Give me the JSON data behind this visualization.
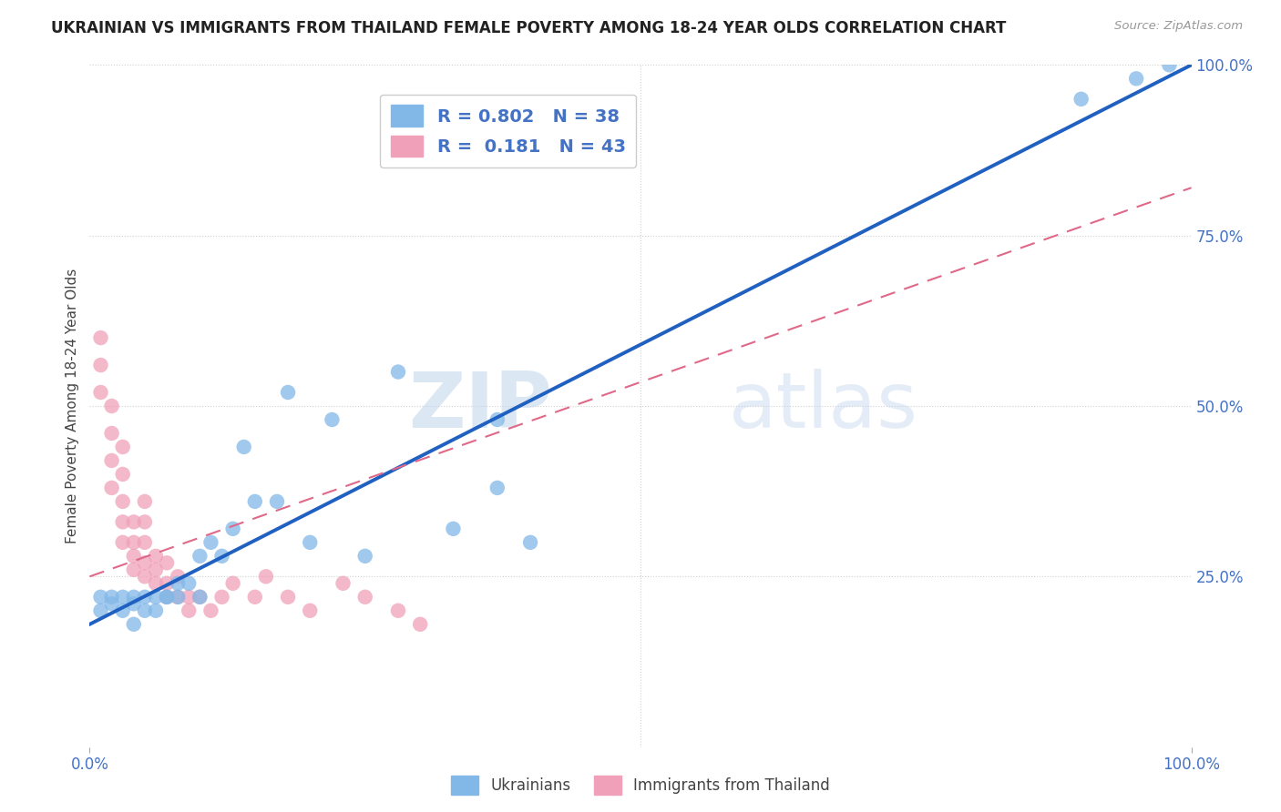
{
  "title": "UKRAINIAN VS IMMIGRANTS FROM THAILAND FEMALE POVERTY AMONG 18-24 YEAR OLDS CORRELATION CHART",
  "source": "Source: ZipAtlas.com",
  "ylabel": "Female Poverty Among 18-24 Year Olds",
  "xlim": [
    0,
    1.0
  ],
  "ylim": [
    0,
    1.0
  ],
  "grid_ticks": [
    0.25,
    0.5,
    0.75
  ],
  "xtick_positions": [
    0.0,
    1.0
  ],
  "xtick_labels": [
    "0.0%",
    "100.0%"
  ],
  "ytick_positions": [
    0.25,
    0.5,
    0.75,
    1.0
  ],
  "ytick_labels_right": [
    "25.0%",
    "50.0%",
    "75.0%",
    "100.0%"
  ],
  "blue_color": "#82b8e8",
  "pink_color": "#f0a0b8",
  "blue_R": 0.802,
  "blue_N": 38,
  "pink_R": 0.181,
  "pink_N": 43,
  "legend_label_blue": "Ukrainians",
  "legend_label_pink": "Immigrants from Thailand",
  "watermark_zip": "ZIP",
  "watermark_atlas": "atlas",
  "background_color": "#ffffff",
  "grid_color": "#d0d0d0",
  "blue_line_x0": 0.0,
  "blue_line_y0": 0.18,
  "blue_line_x1": 1.0,
  "blue_line_y1": 1.0,
  "pink_line_x0": 0.0,
  "pink_line_y0": 0.25,
  "pink_line_x1": 1.0,
  "pink_line_y1": 0.82,
  "blue_line_color": "#2060c0",
  "pink_line_color": "#e06888",
  "title_color": "#222222",
  "axis_label_color": "#444444",
  "tick_color": "#4472c4",
  "blue_scatter_x": [
    0.01,
    0.01,
    0.02,
    0.02,
    0.03,
    0.03,
    0.04,
    0.04,
    0.04,
    0.05,
    0.05,
    0.06,
    0.06,
    0.07,
    0.07,
    0.08,
    0.08,
    0.09,
    0.1,
    0.1,
    0.11,
    0.12,
    0.13,
    0.14,
    0.15,
    0.17,
    0.18,
    0.2,
    0.22,
    0.25,
    0.28,
    0.33,
    0.37,
    0.37,
    0.4,
    0.9,
    0.95,
    0.98
  ],
  "blue_scatter_y": [
    0.2,
    0.22,
    0.21,
    0.22,
    0.2,
    0.22,
    0.18,
    0.21,
    0.22,
    0.2,
    0.22,
    0.2,
    0.22,
    0.22,
    0.22,
    0.22,
    0.24,
    0.24,
    0.22,
    0.28,
    0.3,
    0.28,
    0.32,
    0.44,
    0.36,
    0.36,
    0.52,
    0.3,
    0.48,
    0.28,
    0.55,
    0.32,
    0.38,
    0.48,
    0.3,
    0.95,
    0.98,
    1.0
  ],
  "pink_scatter_x": [
    0.01,
    0.01,
    0.01,
    0.02,
    0.02,
    0.02,
    0.02,
    0.03,
    0.03,
    0.03,
    0.03,
    0.03,
    0.04,
    0.04,
    0.04,
    0.04,
    0.05,
    0.05,
    0.05,
    0.05,
    0.05,
    0.06,
    0.06,
    0.06,
    0.07,
    0.07,
    0.07,
    0.08,
    0.08,
    0.09,
    0.09,
    0.1,
    0.11,
    0.12,
    0.13,
    0.15,
    0.16,
    0.18,
    0.2,
    0.23,
    0.25,
    0.28,
    0.3
  ],
  "pink_scatter_y": [
    0.52,
    0.56,
    0.6,
    0.38,
    0.42,
    0.46,
    0.5,
    0.3,
    0.33,
    0.36,
    0.4,
    0.44,
    0.26,
    0.28,
    0.3,
    0.33,
    0.25,
    0.27,
    0.3,
    0.33,
    0.36,
    0.24,
    0.26,
    0.28,
    0.22,
    0.24,
    0.27,
    0.22,
    0.25,
    0.2,
    0.22,
    0.22,
    0.2,
    0.22,
    0.24,
    0.22,
    0.25,
    0.22,
    0.2,
    0.24,
    0.22,
    0.2,
    0.18
  ]
}
